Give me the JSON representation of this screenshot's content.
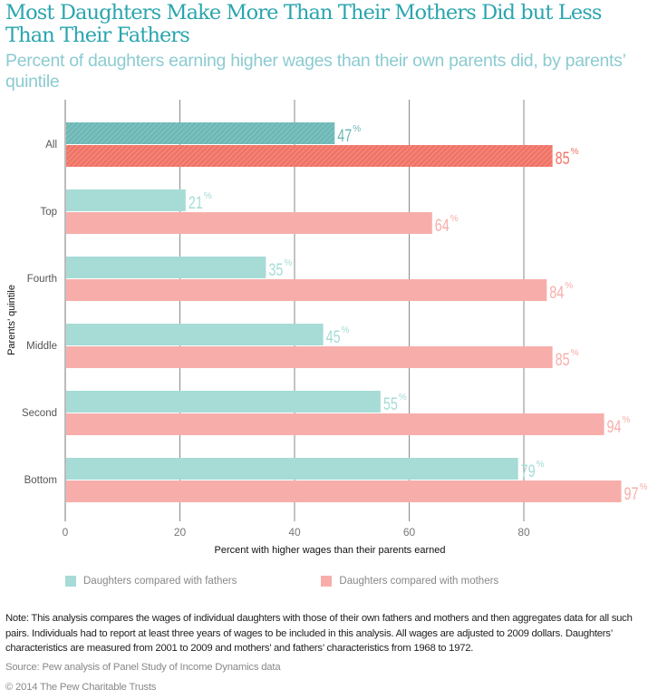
{
  "header": {
    "title": "Most Daughters Make More Than Their Mothers Did but Less Than Their Fathers",
    "subtitle": "Percent of daughters earning higher wages than their own parents did, by parents’ quintile"
  },
  "chart_data": {
    "type": "bar",
    "orientation": "horizontal",
    "title": "Most Daughters Make More Than Their Mothers Did but Less Than Their Fathers",
    "subtitle": "Percent of daughters earning higher wages than their own parents did, by parents’ quintile",
    "xlabel": "Percent with higher wages than their parents earned",
    "ylabel": "Parents’ quintile",
    "xlim": [
      0,
      100
    ],
    "xticks": [
      0,
      20,
      40,
      60,
      80
    ],
    "grid": true,
    "categories": [
      "All",
      "Top",
      "Fourth",
      "Middle",
      "Second",
      "Bottom"
    ],
    "highlighted_category": "All",
    "series": [
      {
        "name": "Daughters compared with fathers",
        "values": [
          47,
          21,
          35,
          45,
          55,
          79
        ],
        "color": "#a6dbd6",
        "highlight_color": "#6db8b6"
      },
      {
        "name": "Daughters compared with mothers",
        "values": [
          85,
          64,
          84,
          85,
          94,
          97
        ],
        "color": "#f7aeaa",
        "highlight_color": "#f07466"
      }
    ],
    "value_suffix": "%",
    "legend_position": "bottom"
  },
  "legend": {
    "items": [
      {
        "label": "Daughters compared with fathers",
        "color": "#a6dbd6"
      },
      {
        "label": "Daughters compared with mothers",
        "color": "#f7aeaa"
      }
    ]
  },
  "footer": {
    "note": "Note: This analysis compares the wages of individual daughters with those of their own fathers and mothers and then aggregates data for all such pairs. Individuals had to report at least three years of wages to be included in this analysis. All wages are adjusted to 2009 dollars. Daughters’ characteristics are measured from 2001 to 2009 and mothers’ and fathers’ characteristics from 1968 to 1972.",
    "source": "Source: Pew analysis of Panel Study of Income Dynamics data",
    "copyright": "© 2014 The Pew Charitable Trusts"
  }
}
